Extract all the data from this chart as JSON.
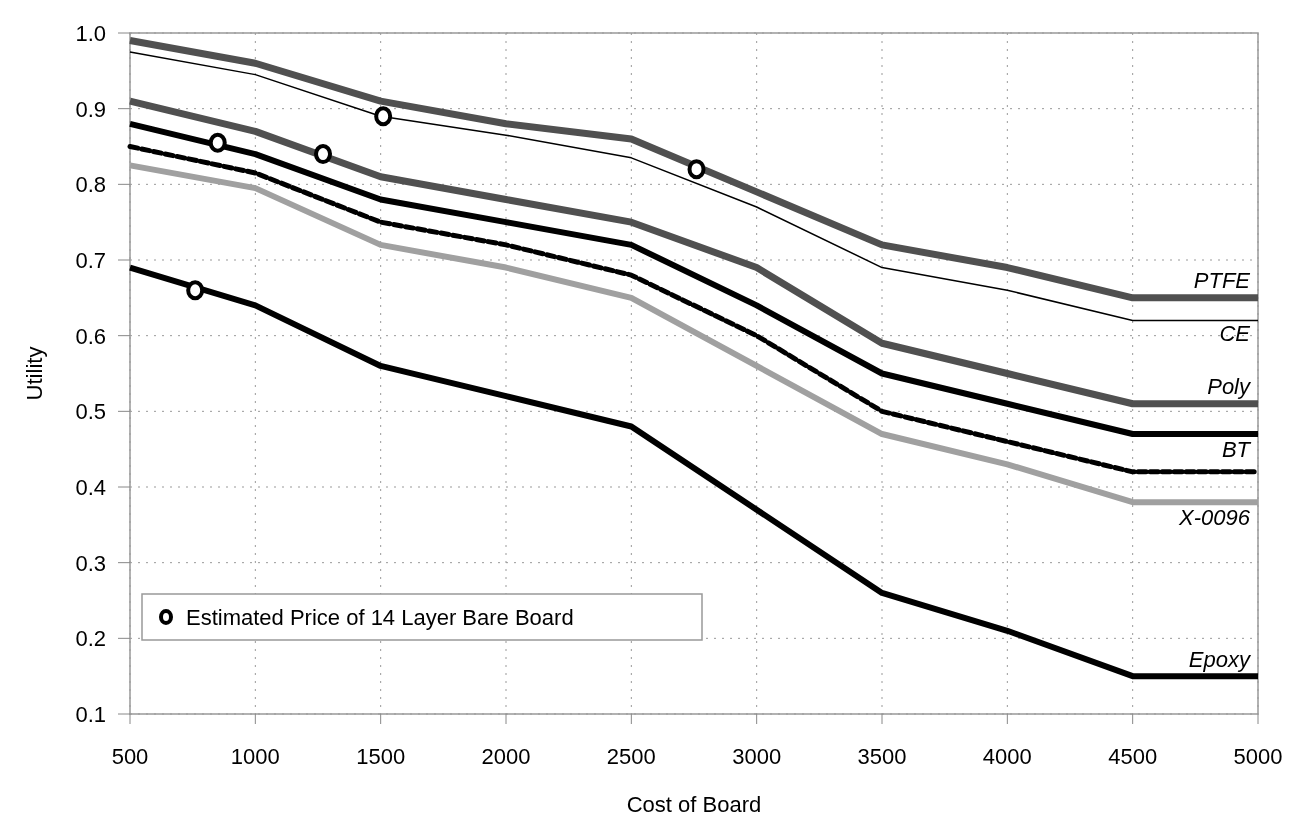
{
  "chart_data": {
    "type": "line",
    "xlabel": "Cost of Board",
    "ylabel": "Utility",
    "x": [
      500,
      1000,
      1500,
      2000,
      2500,
      3000,
      3500,
      4000,
      4500,
      5000
    ],
    "xlim": [
      500,
      5000
    ],
    "xticks": [
      500,
      1000,
      1500,
      2000,
      2500,
      3000,
      3500,
      4000,
      4500,
      5000
    ],
    "ylim": [
      0.1,
      1.0
    ],
    "yticks": [
      {
        "value": 0.1,
        "label": "0.1"
      },
      {
        "value": 0.2,
        "label": "0.2"
      },
      {
        "value": 0.3,
        "label": "0.3"
      },
      {
        "value": 0.4,
        "label": "0.4"
      },
      {
        "value": 0.5,
        "label": "0.5"
      },
      {
        "value": 0.6,
        "label": "0.6"
      },
      {
        "value": 0.7,
        "label": "0.7"
      },
      {
        "value": 0.8,
        "label": "0.8"
      },
      {
        "value": 0.9,
        "label": "0.9"
      },
      {
        "value": 1.0,
        "label": "1.0"
      }
    ],
    "grid": true,
    "legend": "bottom left",
    "marker": "none",
    "line_style": "solid",
    "series": [
      {
        "name": "PTFE",
        "color": "#505050",
        "values": [
          0.99,
          0.96,
          0.91,
          0.88,
          0.86,
          0.79,
          0.72,
          0.69,
          0.65,
          0.65
        ]
      },
      {
        "name": "CE",
        "color": "#000000",
        "values": [
          0.975,
          0.945,
          0.89,
          0.865,
          0.835,
          0.77,
          0.69,
          0.66,
          0.62,
          0.62
        ]
      },
      {
        "name": "Poly",
        "color": "#505050",
        "values": [
          0.91,
          0.87,
          0.81,
          0.78,
          0.75,
          0.69,
          0.59,
          0.55,
          0.51,
          0.51
        ]
      },
      {
        "name": "BT",
        "color": "#000000",
        "values": [
          0.88,
          0.84,
          0.78,
          0.75,
          0.72,
          0.64,
          0.55,
          0.51,
          0.47,
          0.47
        ]
      },
      {
        "color": "#000000",
        "line_style": "dashed",
        "values": [
          0.85,
          0.815,
          0.75,
          0.72,
          0.68,
          0.6,
          0.5,
          0.46,
          0.42,
          0.42
        ]
      },
      {
        "name": "X-0096",
        "color": "#a0a0a0",
        "values": [
          0.825,
          0.795,
          0.72,
          0.69,
          0.65,
          0.56,
          0.47,
          0.43,
          0.38,
          0.38
        ]
      },
      {
        "name": "Epoxy",
        "color": "#000000",
        "values": [
          0.69,
          0.64,
          0.56,
          0.52,
          0.48,
          0.37,
          0.26,
          0.21,
          0.15,
          0.15
        ]
      },
      {
        "name": "Estimated Price of 14 Layer Bare Board",
        "type": "scatter",
        "marker": "circle",
        "color": "#000000",
        "x": [
          760,
          850,
          1270,
          1510,
          2760
        ],
        "values": [
          0.66,
          0.855,
          0.84,
          0.89,
          0.82
        ]
      }
    ]
  }
}
